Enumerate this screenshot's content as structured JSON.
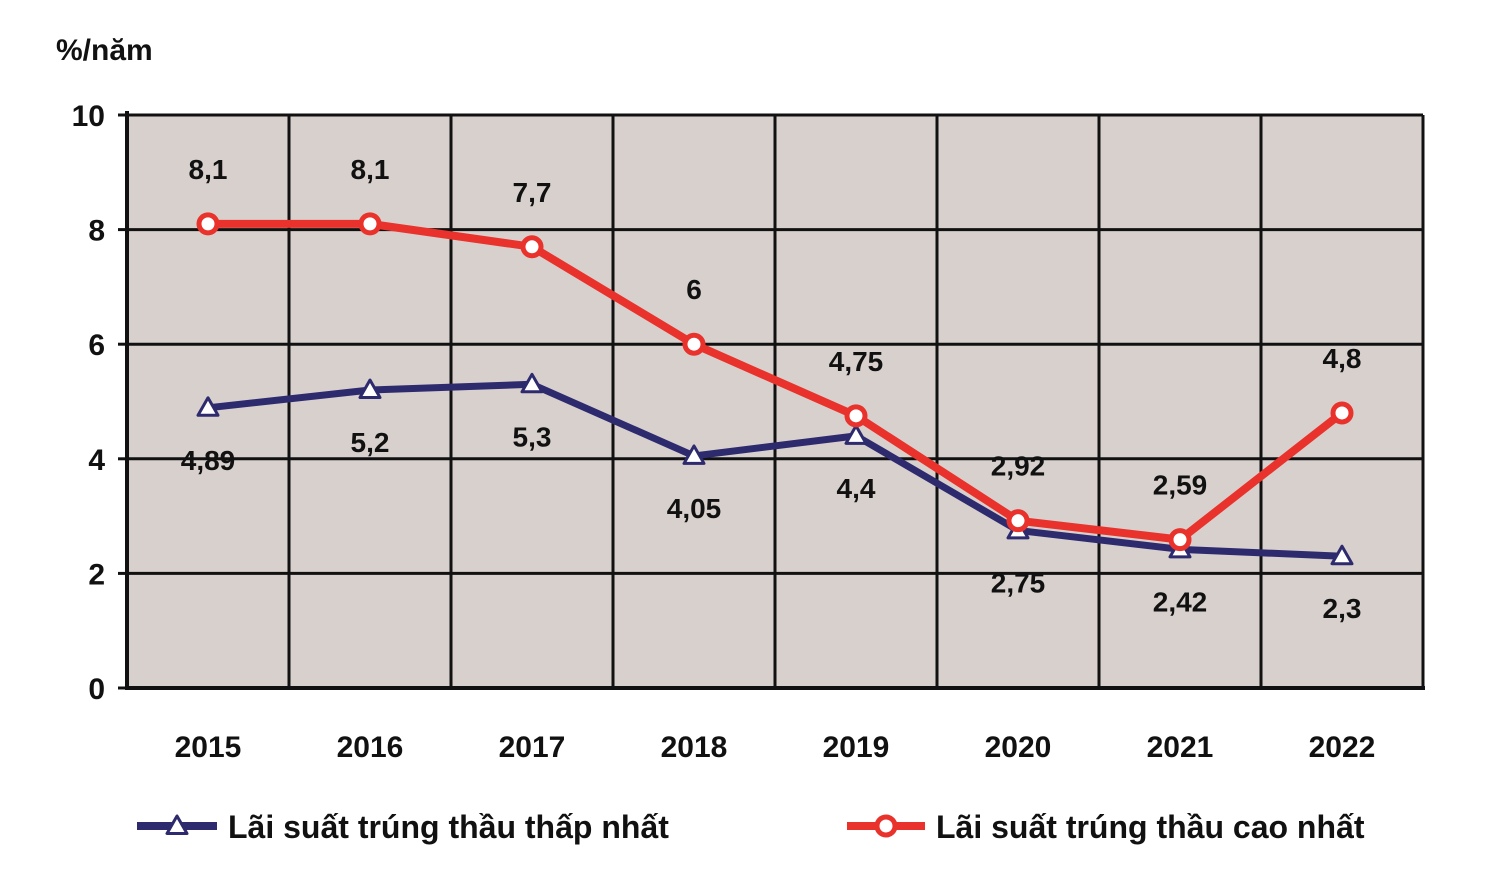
{
  "chart_data": {
    "type": "line",
    "title": "",
    "ylabel": "%/năm",
    "xlabel": "",
    "ylim": [
      0,
      10
    ],
    "yticks": [
      "0",
      "2",
      "4",
      "6",
      "8",
      "10"
    ],
    "categories": [
      "2015",
      "2016",
      "2017",
      "2018",
      "2019",
      "2020",
      "2021",
      "2022"
    ],
    "grid": true,
    "legend_position": "bottom",
    "series": [
      {
        "name": "Lãi suất trúng thầu thấp nhất",
        "color": "#2e2a6e",
        "marker": "triangle",
        "values": [
          4.89,
          5.2,
          5.3,
          4.05,
          4.4,
          2.75,
          2.42,
          2.3
        ],
        "labels": [
          "4,89",
          "5,2",
          "5,3",
          "4,05",
          "4,4",
          "2,75",
          "2,42",
          "2,3"
        ]
      },
      {
        "name": "Lãi suất trúng thầu cao nhất",
        "color": "#e8322b",
        "marker": "circle",
        "values": [
          8.1,
          8.1,
          7.7,
          6,
          4.75,
          2.92,
          2.59,
          4.8
        ],
        "labels": [
          "8,1",
          "8,1",
          "7,7",
          "6",
          "4,75",
          "2,92",
          "2,59",
          "4,8"
        ]
      }
    ],
    "plot_background": "#d7d0cd"
  }
}
